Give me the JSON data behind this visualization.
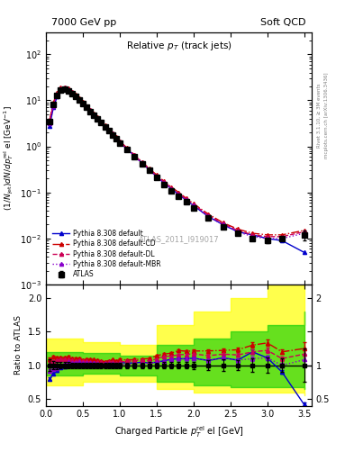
{
  "title_left": "7000 GeV pp",
  "title_right": "Soft QCD",
  "plot_title": "Relative p_{T} (track jets)",
  "ylabel_main": "(1/Njet)dN/dp$_{T}^{rel}$ el [GeV$^{-1}$]",
  "ylabel_ratio": "Ratio to ATLAS",
  "xlabel": "Charged Particle p$_{T}^{rel}$ el [GeV]",
  "watermark": "ATLAS_2011_I919017",
  "rivet_text": "Rivet 3.1.10, ≥ 3M events",
  "mcplots_text": "mcplots.cern.ch [arXiv:1306.3436]",
  "atlas_x": [
    0.05,
    0.1,
    0.15,
    0.2,
    0.25,
    0.3,
    0.35,
    0.4,
    0.45,
    0.5,
    0.55,
    0.6,
    0.65,
    0.7,
    0.75,
    0.8,
    0.85,
    0.9,
    0.95,
    1.0,
    1.1,
    1.2,
    1.3,
    1.4,
    1.5,
    1.6,
    1.7,
    1.8,
    1.9,
    2.0,
    2.2,
    2.4,
    2.6,
    2.8,
    3.0,
    3.2,
    3.5
  ],
  "atlas_y": [
    3.5,
    8.0,
    13.0,
    17.0,
    17.5,
    16.0,
    14.0,
    12.0,
    10.0,
    8.5,
    7.0,
    5.8,
    4.8,
    4.0,
    3.3,
    2.7,
    2.2,
    1.8,
    1.5,
    1.2,
    0.85,
    0.6,
    0.42,
    0.3,
    0.21,
    0.15,
    0.11,
    0.082,
    0.062,
    0.047,
    0.028,
    0.018,
    0.013,
    0.01,
    0.009,
    0.01,
    0.012
  ],
  "atlas_yerr": [
    0.3,
    0.5,
    0.7,
    0.8,
    0.8,
    0.7,
    0.6,
    0.5,
    0.4,
    0.35,
    0.28,
    0.23,
    0.19,
    0.16,
    0.13,
    0.11,
    0.09,
    0.07,
    0.06,
    0.05,
    0.035,
    0.025,
    0.018,
    0.013,
    0.009,
    0.007,
    0.005,
    0.004,
    0.003,
    0.0025,
    0.002,
    0.0015,
    0.001,
    0.001,
    0.001,
    0.001,
    0.003
  ],
  "py_default_x": [
    0.05,
    0.1,
    0.15,
    0.2,
    0.25,
    0.3,
    0.35,
    0.4,
    0.45,
    0.5,
    0.55,
    0.6,
    0.65,
    0.7,
    0.75,
    0.8,
    0.85,
    0.9,
    0.95,
    1.0,
    1.1,
    1.2,
    1.3,
    1.4,
    1.5,
    1.6,
    1.7,
    1.8,
    1.9,
    2.0,
    2.2,
    2.4,
    2.6,
    2.8,
    3.0,
    3.2,
    3.5
  ],
  "py_default_y": [
    2.8,
    7.0,
    12.0,
    16.5,
    17.2,
    16.2,
    14.2,
    12.2,
    10.2,
    8.7,
    7.2,
    6.0,
    5.0,
    4.2,
    3.4,
    2.8,
    2.3,
    1.9,
    1.55,
    1.25,
    0.88,
    0.62,
    0.44,
    0.31,
    0.22,
    0.16,
    0.12,
    0.09,
    0.068,
    0.052,
    0.03,
    0.02,
    0.014,
    0.012,
    0.01,
    0.009,
    0.005
  ],
  "py_CD_x": [
    0.05,
    0.1,
    0.15,
    0.2,
    0.25,
    0.3,
    0.35,
    0.4,
    0.45,
    0.5,
    0.55,
    0.6,
    0.65,
    0.7,
    0.75,
    0.8,
    0.85,
    0.9,
    0.95,
    1.0,
    1.1,
    1.2,
    1.3,
    1.4,
    1.5,
    1.6,
    1.7,
    1.8,
    1.9,
    2.0,
    2.2,
    2.4,
    2.6,
    2.8,
    3.0,
    3.2,
    3.5
  ],
  "py_CD_y": [
    3.8,
    9.0,
    14.5,
    19.0,
    19.5,
    18.0,
    15.5,
    13.2,
    11.0,
    9.2,
    7.6,
    6.3,
    5.2,
    4.3,
    3.5,
    2.85,
    2.35,
    1.95,
    1.6,
    1.3,
    0.92,
    0.65,
    0.46,
    0.33,
    0.24,
    0.175,
    0.13,
    0.1,
    0.075,
    0.057,
    0.034,
    0.022,
    0.016,
    0.013,
    0.012,
    0.012,
    0.015
  ],
  "py_DL_x": [
    0.05,
    0.1,
    0.15,
    0.2,
    0.25,
    0.3,
    0.35,
    0.4,
    0.45,
    0.5,
    0.55,
    0.6,
    0.65,
    0.7,
    0.75,
    0.8,
    0.85,
    0.9,
    0.95,
    1.0,
    1.1,
    1.2,
    1.3,
    1.4,
    1.5,
    1.6,
    1.7,
    1.8,
    1.9,
    2.0,
    2.2,
    2.4,
    2.6,
    2.8,
    3.0,
    3.2,
    3.5
  ],
  "py_DL_y": [
    3.6,
    8.5,
    14.0,
    18.5,
    19.0,
    17.5,
    15.0,
    12.8,
    10.8,
    9.0,
    7.4,
    6.1,
    5.0,
    4.2,
    3.45,
    2.8,
    2.3,
    1.9,
    1.55,
    1.26,
    0.9,
    0.64,
    0.45,
    0.32,
    0.23,
    0.17,
    0.125,
    0.095,
    0.072,
    0.055,
    0.032,
    0.021,
    0.015,
    0.012,
    0.011,
    0.011,
    0.014
  ],
  "py_MBR_x": [
    0.05,
    0.1,
    0.15,
    0.2,
    0.25,
    0.3,
    0.35,
    0.4,
    0.45,
    0.5,
    0.55,
    0.6,
    0.65,
    0.7,
    0.75,
    0.8,
    0.85,
    0.9,
    0.95,
    1.0,
    1.1,
    1.2,
    1.3,
    1.4,
    1.5,
    1.6,
    1.7,
    1.8,
    1.9,
    2.0,
    2.2,
    2.4,
    2.6,
    2.8,
    3.0,
    3.2,
    3.5
  ],
  "py_MBR_y": [
    3.2,
    7.5,
    12.5,
    17.0,
    17.8,
    16.8,
    14.5,
    12.5,
    10.5,
    8.8,
    7.3,
    6.0,
    4.95,
    4.1,
    3.35,
    2.75,
    2.25,
    1.85,
    1.52,
    1.22,
    0.86,
    0.61,
    0.43,
    0.31,
    0.22,
    0.16,
    0.12,
    0.09,
    0.068,
    0.052,
    0.03,
    0.02,
    0.014,
    0.011,
    0.01,
    0.01,
    0.013
  ],
  "band_yellow_x": [
    0.0,
    0.5,
    1.0,
    1.5,
    2.0,
    2.5,
    3.0,
    3.5
  ],
  "band_yellow_lo": [
    0.7,
    0.75,
    0.75,
    0.65,
    0.6,
    0.6,
    0.6,
    0.55
  ],
  "band_yellow_hi": [
    1.4,
    1.35,
    1.3,
    1.6,
    1.8,
    2.0,
    2.2,
    2.5
  ],
  "band_green_x": [
    0.0,
    0.5,
    1.0,
    1.5,
    2.0,
    2.5,
    3.0,
    3.5
  ],
  "band_green_lo": [
    0.85,
    0.88,
    0.85,
    0.75,
    0.7,
    0.68,
    0.68,
    0.65
  ],
  "band_green_hi": [
    1.2,
    1.18,
    1.15,
    1.3,
    1.4,
    1.5,
    1.6,
    1.8
  ],
  "color_atlas": "#000000",
  "color_default": "#0000cc",
  "color_CD": "#cc0000",
  "color_DL": "#cc0055",
  "color_MBR": "#8800cc",
  "color_yellow": "#ffff00",
  "color_green": "#00cc00",
  "ylim_main": [
    0.001,
    300
  ],
  "ylim_ratio": [
    0.4,
    2.2
  ],
  "xlim": [
    0.0,
    3.6
  ]
}
